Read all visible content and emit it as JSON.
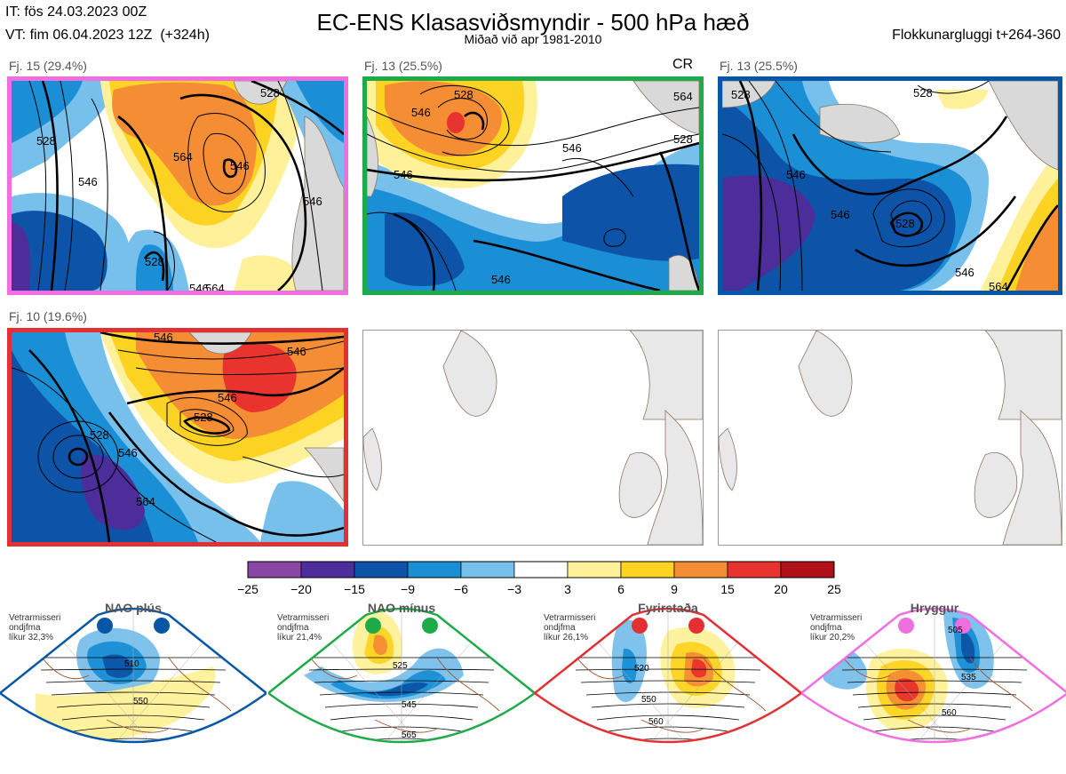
{
  "header": {
    "it_line": "IT: fös 24.03.2023 00Z",
    "vt_line": "VT: fim 06.04.2023 12Z  (+324h)",
    "title": "EC-ENS Klasasviðsmyndir - 500 hPa hæð",
    "subtitle": "Miðað við apr 1981-2010",
    "window": "Flokkunargluggi t+264-360"
  },
  "panels": [
    {
      "label": "Fj. 15 (29.4%)",
      "border_color": "#ef6fe0",
      "contours": [
        "528",
        "546",
        "564",
        "528",
        "546",
        "546",
        "528",
        "546",
        "564"
      ]
    },
    {
      "label": "Fj. 13 (25.5%)",
      "border_color": "#1faa4a",
      "extra": "CR",
      "contours": [
        "546",
        "528",
        "546",
        "564",
        "528",
        "546",
        "546"
      ]
    },
    {
      "label": "Fj. 13 (25.5%)",
      "border_color": "#0857a7",
      "contours": [
        "528",
        "546",
        "528",
        "546",
        "528",
        "546",
        "564"
      ]
    },
    {
      "label": "Fj. 10 (19.6%)",
      "border_color": "#e33133",
      "contours": [
        "546",
        "528",
        "546",
        "528",
        "546",
        "564",
        "546"
      ]
    }
  ],
  "colorbar": {
    "labels": [
      "−25",
      "−20",
      "−15",
      "−9",
      "−6",
      "−3",
      "3",
      "6",
      "9",
      "15",
      "20",
      "25"
    ],
    "colors": [
      "#8a46a3",
      "#4d2d9a",
      "#0d54a8",
      "#1a8fd6",
      "#78c0ec",
      "#ffffff",
      "#fff199",
      "#fdd323",
      "#f58d34",
      "#e8332e",
      "#b01017"
    ]
  },
  "regimes": [
    {
      "title": "NAO plús",
      "line1": "Vetrarmisseri",
      "line2": "ondjfma",
      "line3": "líkur 32,3%",
      "color": "#0857a7",
      "contours": [
        "510",
        "550"
      ]
    },
    {
      "title": "NAO mínus",
      "line1": "Vetrarmisseri",
      "line2": "ondjfma",
      "line3": "líkur 21,4%",
      "color": "#1faa4a",
      "contours": [
        "525",
        "545",
        "565"
      ]
    },
    {
      "title": "Fyrirstaða",
      "line1": "Vetrarmisseri",
      "line2": "ondjfma",
      "line3": "líkur 26,1%",
      "color": "#e33133",
      "contours": [
        "520",
        "550",
        "560"
      ]
    },
    {
      "title": "Hryggur",
      "line1": "Vetrarmisseri",
      "line2": "ondjfma",
      "line3": "líkur 20,2%",
      "color": "#ef6fe0",
      "contours": [
        "505",
        "535",
        "560"
      ]
    }
  ]
}
